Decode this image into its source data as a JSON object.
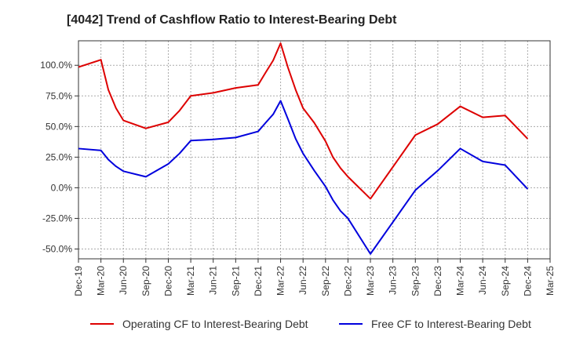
{
  "chart_data": {
    "type": "line",
    "title": "[4042]  Trend of Cashflow Ratio to Interest-Bearing Debt",
    "xlabel": "",
    "ylabel": "",
    "x": [
      "Dec-19",
      "Mar-20",
      "Jun-20",
      "Sep-20",
      "Dec-20",
      "Mar-21",
      "Jun-21",
      "Sep-21",
      "Dec-21",
      "Mar-22",
      "Jun-22",
      "Sep-22",
      "Dec-22",
      "Mar-23",
      "Jun-23",
      "Sep-23",
      "Dec-23",
      "Mar-24",
      "Jun-24",
      "Sep-24",
      "Dec-24",
      "Mar-25"
    ],
    "x_numeric": [
      0,
      1,
      2,
      3,
      4,
      5,
      6,
      7,
      8,
      9,
      10,
      11,
      12,
      13,
      14,
      15,
      16,
      17,
      18,
      19,
      20,
      21
    ],
    "xlim": [
      0,
      21
    ],
    "ylim": [
      -58,
      120
    ],
    "yticks": [
      100,
      75,
      50,
      25,
      0,
      -25,
      -50
    ],
    "ytick_labels": [
      "100.0%",
      "75.0%",
      "50.0%",
      "25.0%",
      "0.0%",
      "-25.0%",
      "-50.0%"
    ],
    "grid": true,
    "legend": "bottom",
    "series": [
      {
        "name": "Operating CF to Interest-Bearing Debt",
        "color": "#dd0000",
        "points": [
          [
            0,
            98.5
          ],
          [
            1,
            104.5
          ],
          [
            1.33,
            80
          ],
          [
            1.67,
            65
          ],
          [
            2,
            55
          ],
          [
            3,
            48.5
          ],
          [
            4,
            53.5
          ],
          [
            4.5,
            63
          ],
          [
            5,
            75
          ],
          [
            6,
            77.5
          ],
          [
            7,
            81.5
          ],
          [
            8,
            84
          ],
          [
            8.33,
            94
          ],
          [
            8.67,
            104
          ],
          [
            9,
            118
          ],
          [
            9.33,
            98
          ],
          [
            9.67,
            80
          ],
          [
            10,
            65
          ],
          [
            10.5,
            53
          ],
          [
            11,
            38
          ],
          [
            11.33,
            25
          ],
          [
            11.67,
            16
          ],
          [
            12,
            9
          ],
          [
            13,
            -9
          ],
          [
            14,
            17
          ],
          [
            15,
            43
          ],
          [
            16,
            52
          ],
          [
            17,
            66.5
          ],
          [
            18,
            57.5
          ],
          [
            19,
            59
          ],
          [
            20,
            40
          ]
        ]
      },
      {
        "name": "Free CF to Interest-Bearing Debt",
        "color": "#0000dd",
        "points": [
          [
            0,
            32
          ],
          [
            1,
            30.5
          ],
          [
            1.33,
            23
          ],
          [
            1.67,
            17.5
          ],
          [
            2,
            13.5
          ],
          [
            3,
            9
          ],
          [
            4,
            19.5
          ],
          [
            4.5,
            28
          ],
          [
            5,
            38.5
          ],
          [
            6,
            39.5
          ],
          [
            7,
            41
          ],
          [
            8,
            46
          ],
          [
            8.33,
            53
          ],
          [
            8.67,
            60
          ],
          [
            9,
            71
          ],
          [
            9.33,
            56
          ],
          [
            9.67,
            40
          ],
          [
            10,
            28
          ],
          [
            10.5,
            14
          ],
          [
            11,
            1
          ],
          [
            11.33,
            -10
          ],
          [
            11.67,
            -19
          ],
          [
            12,
            -25
          ],
          [
            13,
            -54
          ],
          [
            14,
            -28
          ],
          [
            15,
            -2
          ],
          [
            16,
            14
          ],
          [
            17,
            32
          ],
          [
            18,
            21.5
          ],
          [
            19,
            18.5
          ],
          [
            20,
            -1
          ]
        ]
      }
    ]
  }
}
